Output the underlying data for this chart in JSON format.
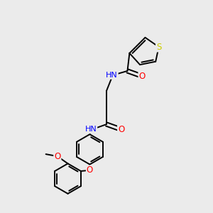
{
  "bg_color": "#ebebeb",
  "atom_colors": {
    "S": "#cccc00",
    "N": "#0000ff",
    "O": "#ff0000",
    "C": "#000000",
    "H": "#6a9a9a"
  },
  "bond_color": "#000000",
  "bond_width": 1.4,
  "figsize": [
    3.0,
    3.0
  ],
  "dpi": 100
}
